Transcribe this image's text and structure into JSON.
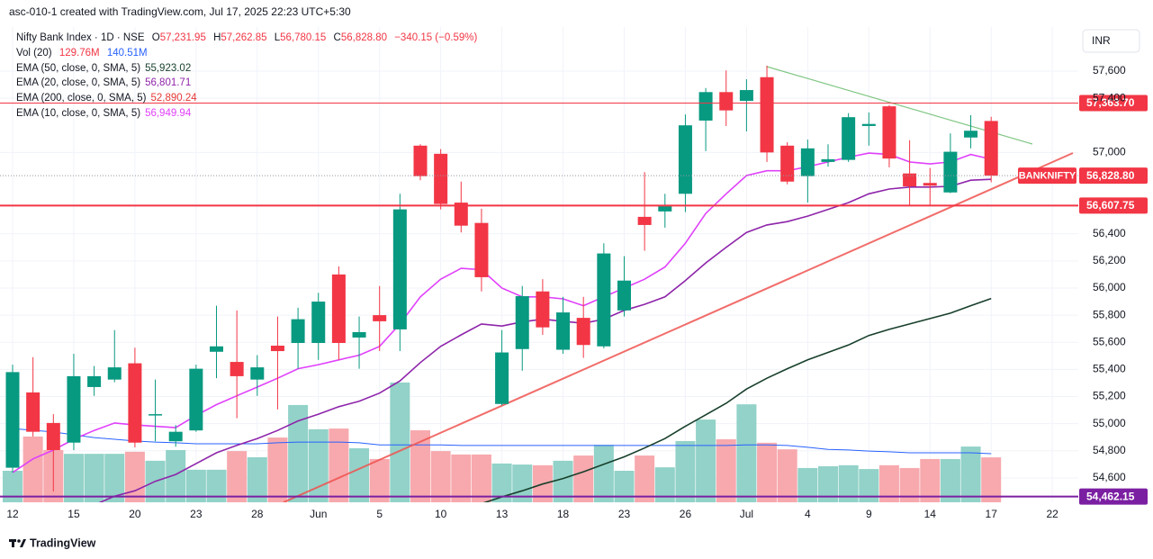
{
  "chart_data": {
    "type": "candlestick",
    "title": "asc-010-1 created with TradingView.com, Jul 17, 2025 22:23 UTC+5:30",
    "brand": "TradingView",
    "currency": "INR",
    "legend": {
      "symbol": "Nifty Bank Index · 1D · NSE",
      "ohlc": [
        {
          "key": "O",
          "value": "57,231.95"
        },
        {
          "key": "H",
          "value": "57,262.85"
        },
        {
          "key": "L",
          "value": "56,780.15"
        },
        {
          "key": "C",
          "value": "56,828.80"
        }
      ],
      "change": "−340.15 (−0.59%)"
    },
    "up_color": "#089981",
    "down_color": "#f23645",
    "categories": [
      "12",
      null,
      null,
      "15",
      null,
      null,
      "20",
      null,
      null,
      "23",
      null,
      null,
      "28",
      null,
      null,
      "Jun",
      null,
      null,
      "5",
      null,
      null,
      "10",
      null,
      null,
      "13",
      null,
      null,
      "18",
      null,
      null,
      "23",
      null,
      null,
      "26",
      null,
      null,
      "Jul",
      null,
      null,
      "4",
      null,
      null,
      "9",
      null,
      null,
      "14",
      null,
      null,
      "17",
      null,
      null,
      "22"
    ],
    "open": [
      54675,
      55230,
      55005,
      54860,
      55270,
      55325,
      55445,
      55060,
      54870,
      54950,
      55530,
      55455,
      55325,
      55575,
      55595,
      55595,
      56100,
      55635,
      55800,
      55695,
      57050,
      56990,
      56630,
      56480,
      55145,
      55550,
      55975,
      55545,
      55780,
      55570,
      55835,
      56525,
      56565,
      56695,
      57235,
      57445,
      57380,
      57555,
      57050,
      56825,
      56930,
      56945,
      57195,
      57340,
      56845,
      56775,
      56705,
      57110,
      57231.95,
      null,
      null,
      null
    ],
    "high": [
      55435,
      55490,
      55070,
      55515,
      55425,
      55690,
      55560,
      55325,
      54990,
      55435,
      55870,
      55835,
      55505,
      55790,
      55855,
      55965,
      56160,
      55790,
      56015,
      56695,
      57060,
      57025,
      56785,
      56585,
      55690,
      56015,
      56065,
      55935,
      55935,
      56330,
      56235,
      56855,
      56695,
      57280,
      57475,
      57605,
      57540,
      57640,
      57075,
      57095,
      57060,
      57290,
      57295,
      57350,
      57090,
      56885,
      57140,
      57275,
      57262.85,
      null,
      null,
      null
    ],
    "low": [
      54640,
      54905,
      54500,
      54805,
      55205,
      55305,
      54825,
      54870,
      54830,
      54940,
      55335,
      55040,
      55205,
      55105,
      55405,
      55470,
      55470,
      55405,
      55535,
      55535,
      56795,
      56580,
      56410,
      55975,
      55135,
      55390,
      55655,
      55515,
      55485,
      55555,
      55790,
      56275,
      56445,
      56560,
      57010,
      57195,
      57155,
      56930,
      56765,
      56630,
      56895,
      56930,
      57050,
      56890,
      56610,
      56610,
      56700,
      57030,
      56780.15,
      null,
      null,
      null
    ],
    "close": [
      55380,
      54940,
      54805,
      55350,
      55350,
      55415,
      54860,
      55070,
      54940,
      55405,
      55570,
      55350,
      55415,
      55535,
      55770,
      55900,
      55595,
      55675,
      55755,
      56580,
      56825,
      56620,
      56460,
      56080,
      55525,
      55940,
      55710,
      55820,
      55580,
      56255,
      56055,
      56465,
      56610,
      57200,
      57445,
      57310,
      57460,
      57000,
      56785,
      57030,
      56950,
      57260,
      57210,
      56955,
      56750,
      56755,
      57005,
      57160,
      56828.8,
      null,
      null,
      null
    ],
    "ylim": [
      54420,
      57925
    ],
    "yticks": [
      {
        "value": 57600,
        "label": "57,600"
      },
      {
        "value": 57400,
        "label": "57,400"
      },
      {
        "value": 57000,
        "label": "57,000"
      },
      {
        "value": 56400,
        "label": "56,400"
      },
      {
        "value": 56200,
        "label": "56,200"
      },
      {
        "value": 56000,
        "label": "56,000"
      },
      {
        "value": 55800,
        "label": "55,800"
      },
      {
        "value": 55600,
        "label": "55,600"
      },
      {
        "value": 55400,
        "label": "55,400"
      },
      {
        "value": 55200,
        "label": "55,200"
      },
      {
        "value": 55000,
        "label": "55,000"
      },
      {
        "value": 54800,
        "label": "54,800"
      },
      {
        "value": 54600,
        "label": "54,600"
      }
    ],
    "volume": {
      "name": "Vol (20)",
      "value_label": "129.76M",
      "ma_label": "140.51M",
      "ma_color": "#2962ff",
      "up_color": "#92d2c8",
      "down_color": "#f7a9ae",
      "ylim": [
        0,
        1373
      ],
      "values": [
        91,
        190,
        151,
        140,
        140,
        140,
        146,
        120,
        151,
        94,
        94,
        148,
        130,
        187,
        281,
        211,
        213,
        156,
        125,
        346,
        208,
        148,
        138,
        138,
        112,
        109,
        107,
        120,
        135,
        166,
        91,
        135,
        101,
        177,
        239,
        182,
        283,
        172,
        153,
        99,
        104,
        107,
        96,
        107,
        99,
        125,
        125,
        161,
        129.76,
        null,
        null,
        null
      ],
      "ma_values": [
        213,
        208,
        203,
        195,
        187,
        182,
        177,
        174,
        172,
        169,
        169,
        169,
        169,
        172,
        174,
        174,
        174,
        172,
        166,
        166,
        166,
        166,
        164,
        164,
        164,
        164,
        164,
        164,
        164,
        164,
        164,
        164,
        164,
        164,
        164,
        164,
        166,
        166,
        164,
        159,
        153,
        151,
        148,
        146,
        143,
        143,
        143,
        143,
        140.51,
        null,
        null,
        null
      ]
    },
    "indicators": [
      {
        "name": "EMA (50, close, 0, SMA, 5)",
        "value_label": "55,923.02",
        "color": "#173f2b",
        "values": [
          null,
          null,
          null,
          null,
          null,
          null,
          null,
          null,
          null,
          null,
          null,
          null,
          null,
          null,
          null,
          null,
          null,
          null,
          null,
          null,
          null,
          null,
          null,
          54410,
          54460,
          54505,
          54555,
          54595,
          54645,
          54700,
          54755,
          54820,
          54890,
          54980,
          55065,
          55150,
          55255,
          55335,
          55405,
          55470,
          55525,
          55580,
          55650,
          55695,
          55735,
          55775,
          55815,
          55870,
          55923.02,
          null,
          null,
          null
        ]
      },
      {
        "name": "EMA (20, close, 0, SMA, 5)",
        "value_label": "56,801.71",
        "color": "#8e24aa",
        "values": [
          null,
          null,
          null,
          null,
          54400,
          54465,
          54505,
          54575,
          54625,
          54705,
          54785,
          54840,
          54890,
          54950,
          55020,
          55070,
          55125,
          55165,
          55225,
          55315,
          55450,
          55570,
          55655,
          55735,
          55720,
          55750,
          55770,
          55755,
          55740,
          55770,
          55835,
          55880,
          55935,
          56055,
          56185,
          56300,
          56410,
          56465,
          56490,
          56530,
          56580,
          56630,
          56695,
          56730,
          56745,
          56745,
          56750,
          56795,
          56801.71,
          null,
          null,
          null
        ]
      },
      {
        "name": "EMA (200, close, 0, SMA, 5)",
        "value_label": "52,890.24",
        "color": "#e53935"
      },
      {
        "name": "EMA (10, close, 0, SMA, 5)",
        "value_label": "56,949.94",
        "color": "#e040fb",
        "values": [
          54640,
          54740,
          54805,
          54885,
          54950,
          55005,
          54990,
          54980,
          54970,
          55060,
          55140,
          55205,
          55270,
          55335,
          55405,
          55435,
          55470,
          55505,
          55570,
          55735,
          55935,
          56065,
          56145,
          56135,
          56000,
          55935,
          55935,
          55920,
          55870,
          55935,
          56000,
          56065,
          56155,
          56330,
          56550,
          56695,
          56830,
          56865,
          56865,
          56895,
          56930,
          56965,
          56995,
          56985,
          56930,
          56915,
          56930,
          56985,
          56949.94,
          null,
          null,
          null
        ]
      }
    ],
    "levels": [
      {
        "value": 57363.7,
        "label": "57,363.70",
        "color": "#f23645",
        "width": 1
      },
      {
        "value": 56828.8,
        "label": "56,828.80",
        "color": "#f23645",
        "tag": "BANKNIFTY",
        "dotted": true
      },
      {
        "value": 56607.75,
        "label": "56,607.75",
        "color": "#f23645",
        "width": 2
      },
      {
        "value": 54462.15,
        "label": "54,462.15",
        "color": "#7b1fa2",
        "width": 2
      }
    ]
  }
}
